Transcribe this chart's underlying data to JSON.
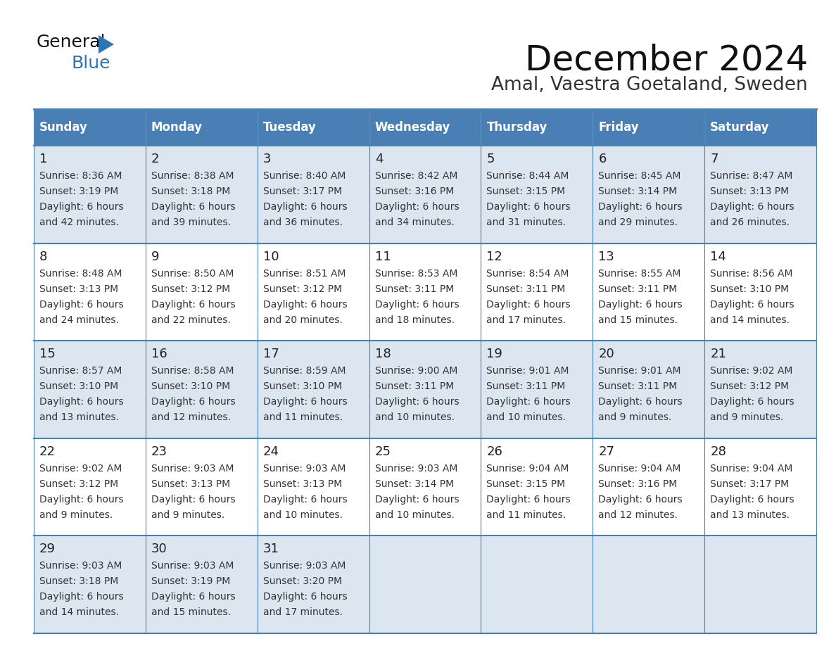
{
  "title": "December 2024",
  "subtitle": "Amal, Vaestra Goetaland, Sweden",
  "days_of_week": [
    "Sunday",
    "Monday",
    "Tuesday",
    "Wednesday",
    "Thursday",
    "Friday",
    "Saturday"
  ],
  "header_bg": "#4a7fb5",
  "header_text": "#ffffff",
  "cell_bg_light": "#dce6f1",
  "cell_bg_white": "#ffffff",
  "border_color": "#4a7fb5",
  "day_num_color": "#222222",
  "text_color": "#333333",
  "title_color": "#111111",
  "subtitle_color": "#333333",
  "logo_general_color": "#111111",
  "logo_blue_color": "#2e75b6",
  "weeks": [
    [
      {
        "day": 1,
        "sunrise": "8:36 AM",
        "sunset": "3:19 PM",
        "daylight": "6 hours and 42 minutes."
      },
      {
        "day": 2,
        "sunrise": "8:38 AM",
        "sunset": "3:18 PM",
        "daylight": "6 hours and 39 minutes."
      },
      {
        "day": 3,
        "sunrise": "8:40 AM",
        "sunset": "3:17 PM",
        "daylight": "6 hours and 36 minutes."
      },
      {
        "day": 4,
        "sunrise": "8:42 AM",
        "sunset": "3:16 PM",
        "daylight": "6 hours and 34 minutes."
      },
      {
        "day": 5,
        "sunrise": "8:44 AM",
        "sunset": "3:15 PM",
        "daylight": "6 hours and 31 minutes."
      },
      {
        "day": 6,
        "sunrise": "8:45 AM",
        "sunset": "3:14 PM",
        "daylight": "6 hours and 29 minutes."
      },
      {
        "day": 7,
        "sunrise": "8:47 AM",
        "sunset": "3:13 PM",
        "daylight": "6 hours and 26 minutes."
      }
    ],
    [
      {
        "day": 8,
        "sunrise": "8:48 AM",
        "sunset": "3:13 PM",
        "daylight": "6 hours and 24 minutes."
      },
      {
        "day": 9,
        "sunrise": "8:50 AM",
        "sunset": "3:12 PM",
        "daylight": "6 hours and 22 minutes."
      },
      {
        "day": 10,
        "sunrise": "8:51 AM",
        "sunset": "3:12 PM",
        "daylight": "6 hours and 20 minutes."
      },
      {
        "day": 11,
        "sunrise": "8:53 AM",
        "sunset": "3:11 PM",
        "daylight": "6 hours and 18 minutes."
      },
      {
        "day": 12,
        "sunrise": "8:54 AM",
        "sunset": "3:11 PM",
        "daylight": "6 hours and 17 minutes."
      },
      {
        "day": 13,
        "sunrise": "8:55 AM",
        "sunset": "3:11 PM",
        "daylight": "6 hours and 15 minutes."
      },
      {
        "day": 14,
        "sunrise": "8:56 AM",
        "sunset": "3:10 PM",
        "daylight": "6 hours and 14 minutes."
      }
    ],
    [
      {
        "day": 15,
        "sunrise": "8:57 AM",
        "sunset": "3:10 PM",
        "daylight": "6 hours and 13 minutes."
      },
      {
        "day": 16,
        "sunrise": "8:58 AM",
        "sunset": "3:10 PM",
        "daylight": "6 hours and 12 minutes."
      },
      {
        "day": 17,
        "sunrise": "8:59 AM",
        "sunset": "3:10 PM",
        "daylight": "6 hours and 11 minutes."
      },
      {
        "day": 18,
        "sunrise": "9:00 AM",
        "sunset": "3:11 PM",
        "daylight": "6 hours and 10 minutes."
      },
      {
        "day": 19,
        "sunrise": "9:01 AM",
        "sunset": "3:11 PM",
        "daylight": "6 hours and 10 minutes."
      },
      {
        "day": 20,
        "sunrise": "9:01 AM",
        "sunset": "3:11 PM",
        "daylight": "6 hours and 9 minutes."
      },
      {
        "day": 21,
        "sunrise": "9:02 AM",
        "sunset": "3:12 PM",
        "daylight": "6 hours and 9 minutes."
      }
    ],
    [
      {
        "day": 22,
        "sunrise": "9:02 AM",
        "sunset": "3:12 PM",
        "daylight": "6 hours and 9 minutes."
      },
      {
        "day": 23,
        "sunrise": "9:03 AM",
        "sunset": "3:13 PM",
        "daylight": "6 hours and 9 minutes."
      },
      {
        "day": 24,
        "sunrise": "9:03 AM",
        "sunset": "3:13 PM",
        "daylight": "6 hours and 10 minutes."
      },
      {
        "day": 25,
        "sunrise": "9:03 AM",
        "sunset": "3:14 PM",
        "daylight": "6 hours and 10 minutes."
      },
      {
        "day": 26,
        "sunrise": "9:04 AM",
        "sunset": "3:15 PM",
        "daylight": "6 hours and 11 minutes."
      },
      {
        "day": 27,
        "sunrise": "9:04 AM",
        "sunset": "3:16 PM",
        "daylight": "6 hours and 12 minutes."
      },
      {
        "day": 28,
        "sunrise": "9:04 AM",
        "sunset": "3:17 PM",
        "daylight": "6 hours and 13 minutes."
      }
    ],
    [
      {
        "day": 29,
        "sunrise": "9:03 AM",
        "sunset": "3:18 PM",
        "daylight": "6 hours and 14 minutes."
      },
      {
        "day": 30,
        "sunrise": "9:03 AM",
        "sunset": "3:19 PM",
        "daylight": "6 hours and 15 minutes."
      },
      {
        "day": 31,
        "sunrise": "9:03 AM",
        "sunset": "3:20 PM",
        "daylight": "6 hours and 17 minutes."
      },
      null,
      null,
      null,
      null
    ]
  ]
}
